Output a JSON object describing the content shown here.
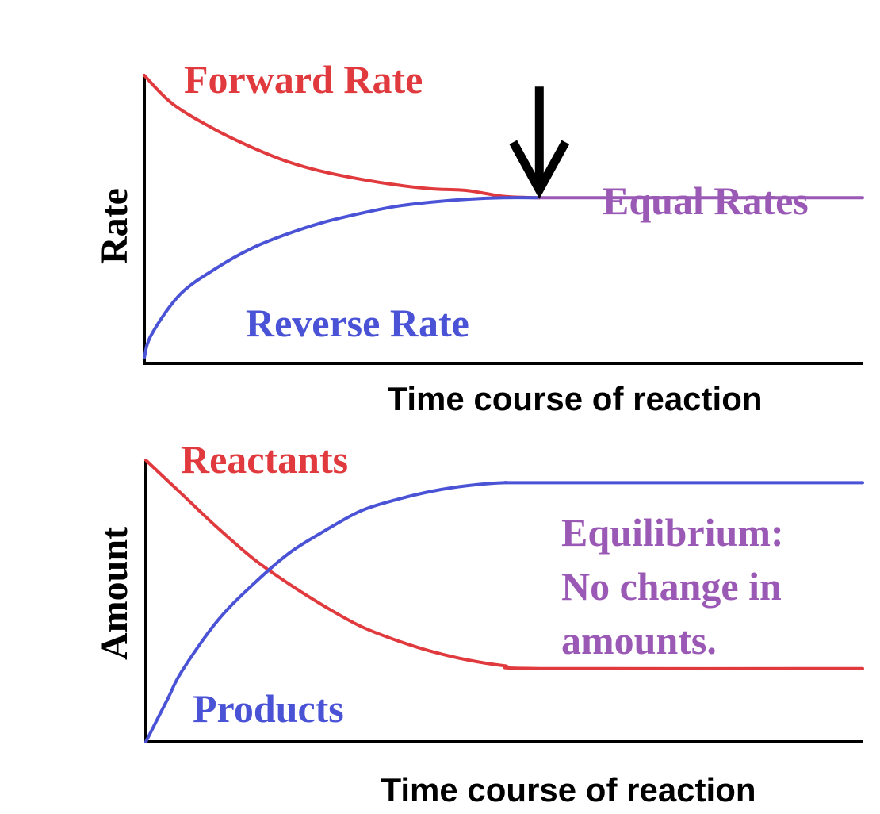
{
  "chart_data": [
    {
      "type": "line",
      "ylabel": "Rate",
      "xlabel": "Time course of reaction",
      "series": [
        {
          "name": "Forward Rate",
          "color": "#e03a3e",
          "x": [
            0,
            0.04,
            0.1,
            0.15,
            0.2,
            0.25,
            0.3,
            0.35,
            0.4,
            0.45,
            0.5,
            0.55
          ],
          "y": [
            1.0,
            0.9,
            0.81,
            0.75,
            0.7,
            0.665,
            0.64,
            0.62,
            0.606,
            0.6,
            0.58,
            0.575
          ]
        },
        {
          "name": "Reverse Rate",
          "color": "#4a52d6",
          "x": [
            0,
            0.01,
            0.05,
            0.1,
            0.15,
            0.2,
            0.25,
            0.3,
            0.35,
            0.4,
            0.45,
            0.5,
            0.55
          ],
          "y": [
            0.02,
            0.1,
            0.24,
            0.33,
            0.4,
            0.45,
            0.49,
            0.52,
            0.545,
            0.56,
            0.57,
            0.575,
            0.575
          ]
        },
        {
          "name": "Equal Rates",
          "color": "#9b59b6",
          "x": [
            0.55,
            1.0
          ],
          "y": [
            0.575,
            0.575
          ]
        }
      ],
      "annotations": [
        {
          "text": "Equal Rates",
          "color": "#9b59b6"
        },
        {
          "marker": "down-arrow",
          "x": 0.55,
          "y": 0.575
        }
      ],
      "xlim": [
        0,
        1
      ],
      "ylim": [
        0,
        1
      ],
      "grid": false
    },
    {
      "type": "line",
      "ylabel": "Amount",
      "xlabel": "Time course of reaction",
      "series": [
        {
          "name": "Reactants",
          "color": "#e03a3e",
          "x": [
            0,
            0.05,
            0.1,
            0.15,
            0.2,
            0.25,
            0.3,
            0.35,
            0.4,
            0.45,
            0.5,
            0.55,
            1.0
          ],
          "y": [
            1.0,
            0.88,
            0.76,
            0.65,
            0.56,
            0.48,
            0.41,
            0.36,
            0.32,
            0.29,
            0.27,
            0.26,
            0.26
          ]
        },
        {
          "name": "Products",
          "color": "#4a52d6",
          "x": [
            0,
            0.03,
            0.05,
            0.1,
            0.15,
            0.2,
            0.25,
            0.3,
            0.35,
            0.4,
            0.45,
            0.5,
            0.55,
            1.0
          ],
          "y": [
            0.0,
            0.15,
            0.25,
            0.43,
            0.56,
            0.67,
            0.75,
            0.82,
            0.86,
            0.89,
            0.91,
            0.92,
            0.92,
            0.92
          ]
        }
      ],
      "annotations": [
        {
          "lines": [
            "Equilibrium:",
            "No change in",
            "amounts."
          ],
          "color": "#9b59b6"
        }
      ],
      "xlim": [
        0,
        1
      ],
      "ylim": [
        0,
        1
      ],
      "grid": false
    }
  ],
  "colors": {
    "axis": "#000000",
    "red": "#e03a3e",
    "blue": "#4a52d6",
    "purple": "#9b59b6"
  },
  "icons": {
    "arrow": "down-arrow-icon"
  }
}
